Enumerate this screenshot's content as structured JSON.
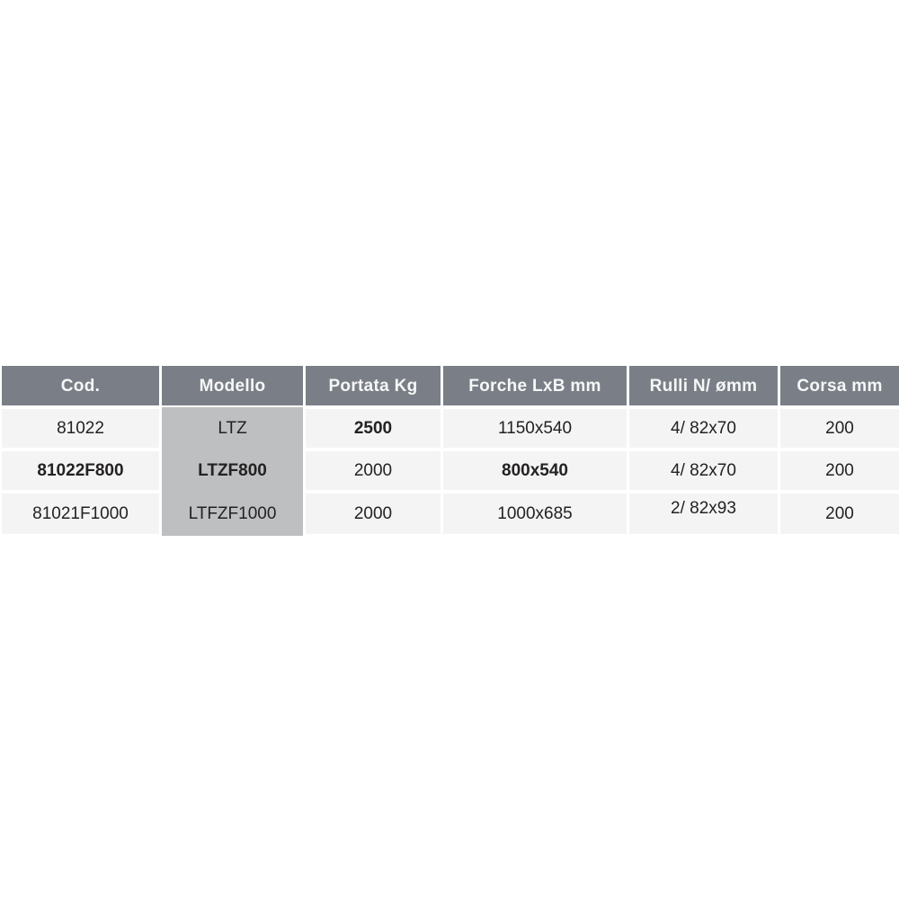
{
  "table": {
    "columns": [
      {
        "label": "Cod."
      },
      {
        "label": "Modello"
      },
      {
        "label": "Portata Kg"
      },
      {
        "label": "Forche LxB mm"
      },
      {
        "label": "Rulli N/ ømm"
      },
      {
        "label": "Corsa mm"
      }
    ],
    "rows": [
      {
        "cod": "81022",
        "modello": "LTZ",
        "portata": "2500",
        "forche": "1150x540",
        "rulli": "4/ 82x70",
        "corsa": "200"
      },
      {
        "cod": "81022F800",
        "modello": "LTZF800",
        "portata": "2000",
        "forche": "800x540",
        "rulli": "4/ 82x70",
        "corsa": "200"
      },
      {
        "cod": "81021F1000",
        "modello": "LTFZF1000",
        "portata": "2000",
        "forche": "1000x685",
        "rulli": "2/ 82x93",
        "corsa": "200"
      }
    ]
  },
  "chart_data": {
    "type": "table",
    "columns": [
      "Cod.",
      "Modello",
      "Portata Kg",
      "Forche LxB mm",
      "Rulli N/ ømm",
      "Corsa mm"
    ],
    "rows": [
      [
        "81022",
        "LTZ",
        "2500",
        "1150x540",
        "4/ 82x70",
        "200"
      ],
      [
        "81022F800",
        "LTZF800",
        "2000",
        "800x540",
        "4/ 82x70",
        "200"
      ],
      [
        "81021F1000",
        "LTFZF1000",
        "2000",
        "1000x685",
        "2/ 82x93",
        "200"
      ]
    ]
  },
  "colors": {
    "header_bg": "#7a7f87",
    "header_text": "#f6f7f7",
    "row_bg": "#f4f4f5",
    "modello_bg": "#bdbfc0",
    "cell_text": "#242122",
    "gap": "#ffffff",
    "page_bg": "#ffffff"
  }
}
